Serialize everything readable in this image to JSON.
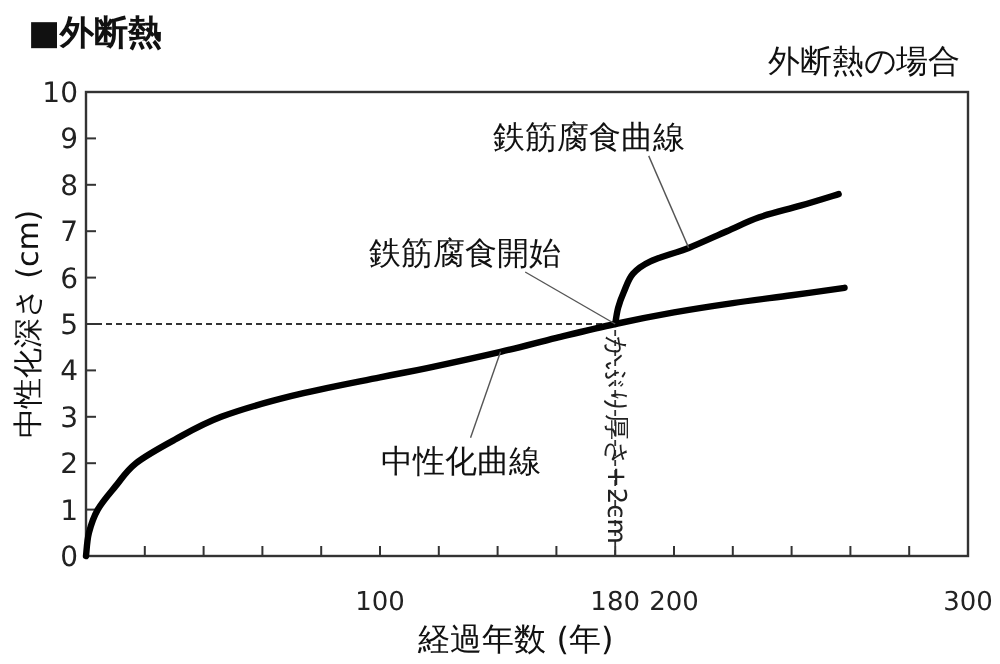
{
  "chart_data": {
    "type": "line",
    "title": "■外断熱",
    "subtitle": "外断熱の場合",
    "xlabel": "経過年数 (年)",
    "ylabel": "中性化深さ (cm)",
    "xlim": [
      0,
      300
    ],
    "ylim": [
      0,
      10
    ],
    "xticks": [
      {
        "value": 20,
        "label": null
      },
      {
        "value": 40,
        "label": null
      },
      {
        "value": 60,
        "label": null
      },
      {
        "value": 80,
        "label": null
      },
      100,
      {
        "value": 120,
        "label": null
      },
      {
        "value": 140,
        "label": null
      },
      {
        "value": 160,
        "label": null
      },
      180,
      200,
      {
        "value": 220,
        "label": null
      },
      {
        "value": 240,
        "label": null
      },
      {
        "value": 260,
        "label": null
      },
      {
        "value": 280,
        "label": null
      },
      300
    ],
    "yticks": [
      0,
      1,
      2,
      3,
      4,
      5,
      6,
      7,
      8,
      9,
      10
    ],
    "grid": false,
    "marker": "none",
    "line_style": "solid",
    "series": [
      {
        "color": "#000000",
        "x": [
          0,
          1,
          4,
          10,
          17,
          30,
          46,
          70,
          100,
          116,
          141,
          160,
          180,
          200,
          220,
          240,
          258
        ],
        "values": [
          0,
          0.5,
          1,
          1.5,
          2,
          2.5,
          3,
          3.45,
          3.85,
          4.05,
          4.4,
          4.7,
          5,
          5.25,
          5.45,
          5.62,
          5.78
        ]
      },
      {
        "color": "#000000",
        "x": [
          180,
          181,
          183,
          186,
          192,
          205,
          218,
          229,
          243,
          256
        ],
        "values": [
          5,
          5.35,
          5.7,
          6.08,
          6.35,
          6.64,
          7.0,
          7.3,
          7.55,
          7.8
        ]
      }
    ],
    "ref_lines": [
      {
        "axis": "y",
        "value": 5,
        "line_style": "dashed"
      },
      {
        "axis": "x",
        "value": 180,
        "label": "かぶり厚さ+2cm",
        "line_style": "dashed"
      }
    ],
    "annotations": [
      {
        "text": "鉄筋腐食曲線",
        "x": 205,
        "y": 6.64
      },
      {
        "text": "鉄筋腐食開始",
        "x": 180,
        "y": 5
      },
      {
        "text": "中性化曲線",
        "x": 141,
        "y": 4.4
      }
    ]
  }
}
